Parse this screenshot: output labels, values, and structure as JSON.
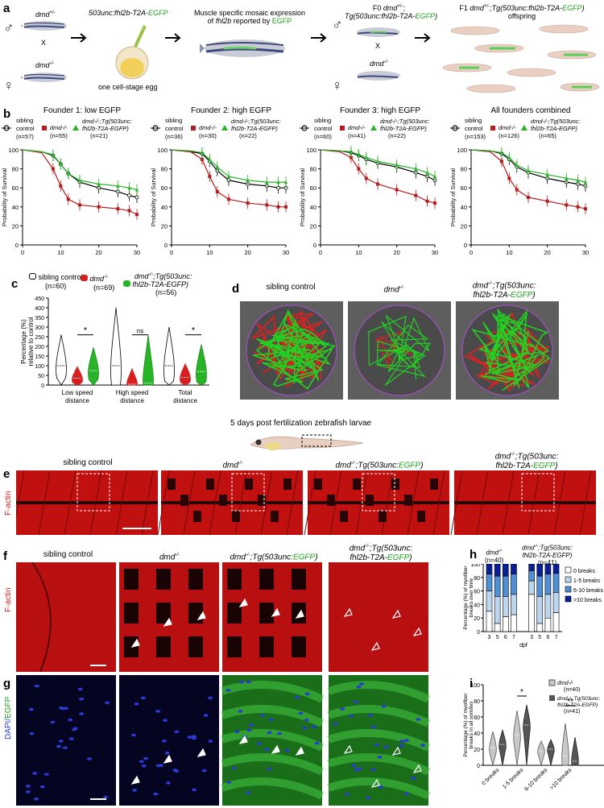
{
  "labels": {
    "a": "a",
    "b": "b",
    "c": "c",
    "d": "d",
    "e": "e",
    "f": "f",
    "g": "g",
    "h": "h",
    "i": "i"
  },
  "panel_a": {
    "fish1": "dmd",
    "fish1_sup": "+/-",
    "cross": "X",
    "fish2": "dmd",
    "fish2_sup": "-/-",
    "construct": "503unc:fhl2b-T2A-",
    "construct_egfp": "EGFP",
    "egg_label": "one cell-stage egg",
    "expr_line1": "Muscle specific mosaic expression",
    "expr_line2a": "of",
    "expr_line2b": "fhl2b",
    "expr_line2c": "reported by",
    "expr_line2d": "EGFP",
    "f0_line1a": "F0",
    "f0_line1b": "dmd",
    "f0_line1c": "+/-",
    "f0_line2a": "Tg(503unc:fhl2b-T2A-",
    "f0_line2b": "EGFP",
    "f0_line2c": ")",
    "f0_cross": "X",
    "f0_mate": "dmd",
    "f0_mate_sup": "-/-",
    "f1_line1a": "F1",
    "f1_line1b": "dmd",
    "f1_line1c": "+/-",
    "f1_line1d": ";Tg(503unc:fhl2b-T2A-",
    "f1_line1e": "EGFP",
    "f1_line1f": ")",
    "f1_line2": "offspring",
    "male": "♂",
    "female": "♀"
  },
  "panel_b": {
    "ylabel": "Probability of Survival",
    "xlabel": "dpf",
    "legend_sib": "sibling",
    "legend_ctrl": "control",
    "legend_dmd": "dmd",
    "legend_tg1": "dmd",
    "legend_tg2": "fhl2b-T2A-EGFP)",
    "yticks": [
      "0",
      "20",
      "40",
      "60",
      "80",
      "100"
    ],
    "xticks": [
      "0",
      "10",
      "20",
      "30"
    ]
  },
  "chart_data": [
    {
      "type": "line",
      "title": "Founder 1: low EGFP",
      "x": [
        0,
        5,
        8,
        10,
        12,
        15,
        20,
        25,
        28,
        30
      ],
      "ylim": [
        0,
        100
      ],
      "xlim": [
        0,
        30
      ],
      "series": [
        {
          "name": "sibling control (n=57)",
          "values": [
            100,
            98,
            94,
            85,
            75,
            66,
            60,
            56,
            52,
            50
          ]
        },
        {
          "name": "dmd-/- (n=55)",
          "values": [
            100,
            97,
            80,
            62,
            48,
            42,
            40,
            38,
            36,
            32
          ]
        },
        {
          "name": "dmd-/-;Tg(503unc:fhl2b-T2A-EGFP) (n=21)",
          "values": [
            100,
            98,
            95,
            85,
            75,
            68,
            64,
            62,
            60,
            58
          ]
        }
      ]
    },
    {
      "type": "line",
      "title": "Founder 2: high EGFP",
      "x": [
        0,
        5,
        8,
        10,
        12,
        15,
        20,
        25,
        28,
        30
      ],
      "ylim": [
        0,
        100
      ],
      "xlim": [
        0,
        30
      ],
      "series": [
        {
          "name": "sibling control (n=36)",
          "values": [
            100,
            98,
            96,
            88,
            78,
            68,
            64,
            62,
            60,
            60
          ]
        },
        {
          "name": "dmd-/- (n=30)",
          "values": [
            100,
            98,
            90,
            72,
            56,
            48,
            44,
            42,
            40,
            40
          ]
        },
        {
          "name": "dmd-/-;Tg(503unc:fhl2b-T2A-EGFP) (n=22)",
          "values": [
            100,
            99,
            97,
            90,
            82,
            72,
            68,
            66,
            66,
            66
          ]
        }
      ]
    },
    {
      "type": "line",
      "title": "Founder 3: high EGFP",
      "x": [
        0,
        5,
        8,
        10,
        12,
        15,
        20,
        25,
        28,
        30
      ],
      "ylim": [
        0,
        100
      ],
      "xlim": [
        0,
        30
      ],
      "series": [
        {
          "name": "sibling control (n=60)",
          "values": [
            100,
            99,
            97,
            94,
            90,
            86,
            82,
            76,
            72,
            68
          ]
        },
        {
          "name": "dmd-/- (n=41)",
          "values": [
            100,
            98,
            92,
            80,
            70,
            64,
            58,
            52,
            46,
            44
          ]
        },
        {
          "name": "dmd-/-;Tg(503unc:fhl2b-T2A-EGFP) (n=22)",
          "values": [
            100,
            99,
            98,
            95,
            92,
            88,
            84,
            80,
            76,
            72
          ]
        }
      ]
    },
    {
      "type": "line",
      "title": "All founders combined",
      "x": [
        0,
        5,
        8,
        10,
        12,
        15,
        20,
        25,
        28,
        30
      ],
      "ylim": [
        0,
        100
      ],
      "xlim": [
        0,
        30
      ],
      "series": [
        {
          "name": "sibling control (n=153)",
          "values": [
            100,
            99,
            96,
            90,
            82,
            76,
            70,
            66,
            64,
            62
          ]
        },
        {
          "name": "dmd-/- (n=126)",
          "values": [
            100,
            98,
            88,
            70,
            58,
            50,
            46,
            42,
            40,
            38
          ]
        },
        {
          "name": "dmd-/-;Tg(503unc:fhl2b-T2A-EGFP) (n=65)",
          "values": [
            100,
            99,
            97,
            92,
            84,
            78,
            74,
            70,
            68,
            66
          ]
        }
      ]
    },
    {
      "type": "violin",
      "ylabel": "Percentage (%) relative to control",
      "ylim": [
        0,
        450
      ],
      "yticks": [
        0,
        50,
        100,
        150,
        200,
        250,
        300,
        350,
        400,
        450
      ],
      "categories": [
        "Low speed distance",
        "High speed distance",
        "Total distance"
      ],
      "series": [
        {
          "name": "sibling control (n=60)",
          "medians": [
            100,
            100,
            100
          ]
        },
        {
          "name": "dmd-/- (n=69)",
          "medians": [
            35,
            5,
            40
          ]
        },
        {
          "name": "dmd-/-;Tg(503unc:fhl2b-T2A-EGFP) (n=56)",
          "medians": [
            75,
            10,
            70
          ]
        }
      ],
      "annotations": [
        "*",
        "ns",
        "*"
      ]
    },
    {
      "type": "bar",
      "ylabel": "Percentage (%) of myofiber breaks over time",
      "xlabel": "dpf",
      "ylim": [
        0,
        100
      ],
      "yticks": [
        0,
        20,
        40,
        60,
        80,
        100
      ],
      "categories": [
        "3",
        "5",
        "6",
        "7",
        "3",
        "5",
        "6",
        "7"
      ],
      "groups": [
        "dmd-/- (n=40)",
        "dmd-/-;Tg(503unc:fhl2b-T2A-EGFP) (n=41)"
      ],
      "series": [
        {
          "name": "0 breaks",
          "values": [
            30,
            12,
            22,
            25,
            55,
            12,
            20,
            28
          ]
        },
        {
          "name": "1-5 breaks",
          "values": [
            30,
            40,
            30,
            30,
            20,
            40,
            35,
            30
          ]
        },
        {
          "name": "6-10 breaks",
          "values": [
            25,
            30,
            30,
            30,
            15,
            30,
            30,
            28
          ]
        },
        {
          "name": ">10 breaks",
          "values": [
            15,
            18,
            18,
            15,
            10,
            18,
            15,
            14
          ]
        }
      ]
    },
    {
      "type": "violin",
      "ylabel": "Percentage (%) of myofiber breaks in all somites",
      "ylim": [
        0,
        100
      ],
      "yticks": [
        0,
        20,
        40,
        60,
        80,
        100
      ],
      "categories": [
        "0 breaks",
        "1-5 breaks",
        "6-10 breaks",
        ">10 breaks"
      ],
      "series": [
        {
          "name": "dmd-/- (n=40)",
          "medians": [
            22,
            38,
            18,
            12
          ]
        },
        {
          "name": "dmd-/-;Tg(503unc:fhl2b-T2A-EGFP) (n=41)",
          "medians": [
            26,
            50,
            20,
            5
          ]
        }
      ],
      "annotations": [
        "",
        "*",
        "",
        "**"
      ]
    }
  ],
  "panel_c": {
    "leg_sib": "sibling control",
    "leg_sib_n": "(n=60)",
    "leg_dmd": "dmd",
    "leg_dmd_n": "(n=69)",
    "leg_tg1": "dmd",
    "leg_tg2": ";Tg(503unc:",
    "leg_tg3": "fhl2b-T2A-EGFP)",
    "leg_tg_n": "(n=56)",
    "ylabel1": "Percentage (%)",
    "ylabel2": "relative to control",
    "cat1a": "Low speed",
    "cat1b": "distance",
    "cat2a": "High speed",
    "cat2b": "distance",
    "cat3a": "Total",
    "cat3b": "distance",
    "sig1": "*",
    "sig2": "ns",
    "sig3": "*"
  },
  "panel_d": {
    "t1": "sibling control",
    "t2": "dmd",
    "t3a": "dmd",
    "t3b": ";Tg(503unc:",
    "t3c": "fhl2b-T2A-",
    "t3d": "EGFP",
    ")": ")"
  },
  "larva": {
    "caption": "5 days post fertilization zebrafish larvae"
  },
  "panel_e": {
    "ylabel": "F-actin",
    "t1": "sibling control",
    "t2": "dmd",
    "t3a": "dmd",
    "t3b": ";Tg(503unc:",
    "t3c": "EGFP",
    "t4a": "dmd",
    "t4b": ";Tg(503unc:",
    "t4c": "fhl2b-T2A-",
    "t4d": "EGFP"
  },
  "panel_f": {
    "ylabel": "F-actin",
    "t1": "sibling control",
    "t2": "dmd",
    "t3a": "dmd",
    "t3b": ";Tg(503unc:",
    "t3c": "EGFP",
    "t4a": "dmd",
    "t4b": ";Tg(503unc:",
    "t4c": "fhl2b-T2A-",
    "t4d": "EGFP"
  },
  "panel_g": {
    "ylabel_a": "DAPI/",
    "ylabel_b": "EGFP"
  },
  "panel_h": {
    "g1": "dmd",
    "g1n": "(n=40)",
    "g2a": "dmd",
    "g2b": ";Tg(503unc:",
    "g2c": "fhl2b-T2A-EGFP)",
    "g2n": "(n=41)",
    "ylabel1": "Percentage (%) of myofiber",
    "ylabel2": "breaks over time",
    "xlabel": "dpf",
    "leg0": "0 breaks",
    "leg1": "1-5 breaks",
    "leg2": "6-10 breaks",
    "leg3": ">10 breaks"
  },
  "panel_i": {
    "ylabel1": "Percentage (%) of myofiber",
    "ylabel2": "breaks in all somites",
    "leg1": "dmd",
    "leg1n": "(n=40)",
    "leg2a": "dmd",
    "leg2b": ";Tg(503unc:",
    "leg2c": "fhl2b-T2A-",
    "leg2d": "EGFP",
    "leg2n": "(n=41)",
    "c1": "0 breaks",
    "c2": "1-5 breaks",
    "c3": "6-10 breaks",
    "c4": ">10 breaks",
    "s1": "*",
    "s2": "**"
  },
  "sup": {
    "mm": "-/-",
    "pm": "+/-"
  }
}
